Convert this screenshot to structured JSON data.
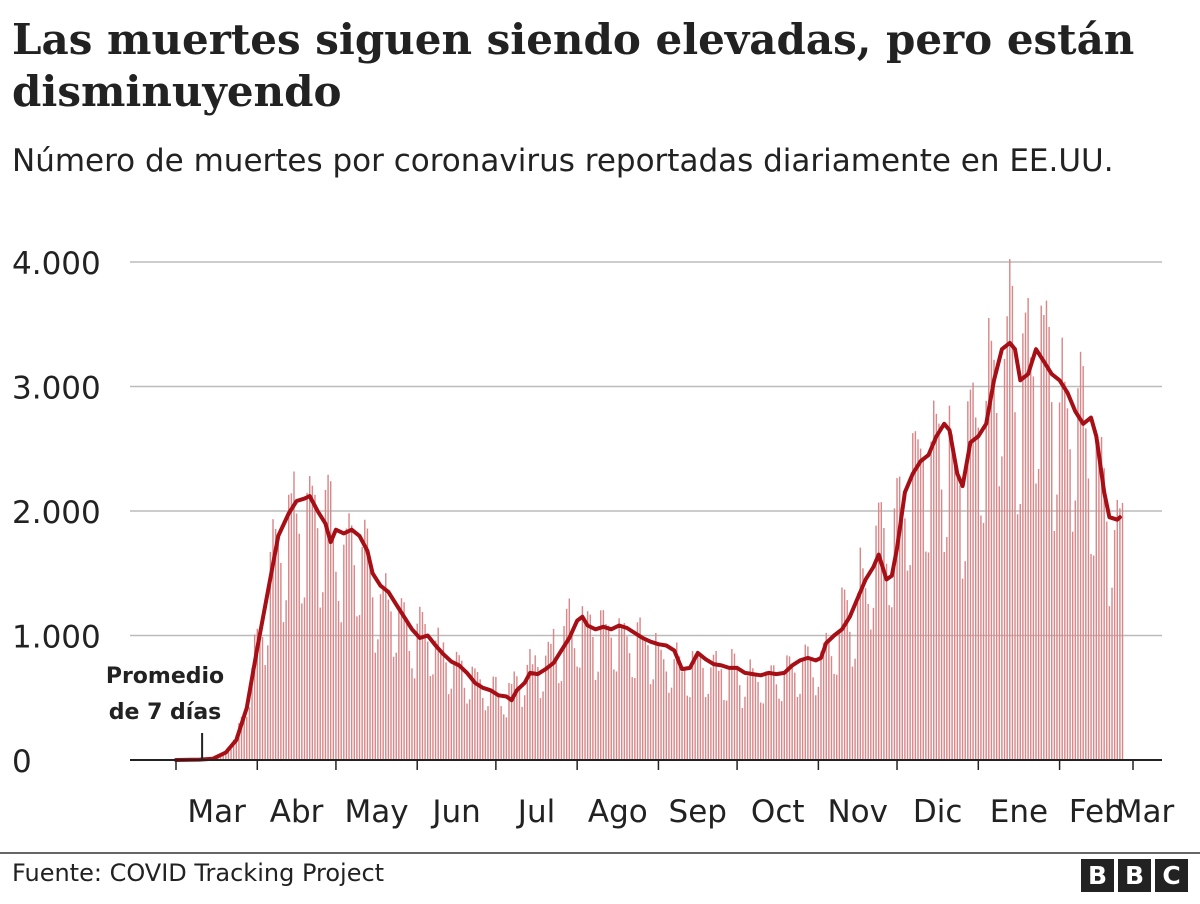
{
  "header": {
    "title": "Las muertes siguen siendo elevadas, pero están disminuyendo",
    "subtitle": "Número de muertes por coronavirus reportadas diariamente en EE.UU."
  },
  "footer": {
    "source": "Fuente: COVID Tracking Project",
    "logo_letters": [
      "B",
      "B",
      "C"
    ]
  },
  "colors": {
    "bars": "#d9888a",
    "line": "#a50f15",
    "grid": "#bbbbbb",
    "axis": "#222222",
    "text": "#222222"
  },
  "chart_data": {
    "type": "bar",
    "title": "Las muertes siguen siendo elevadas, pero están disminuyendo",
    "subtitle": "Número de muertes por coronavirus reportadas diariamente en EE.UU.",
    "xlabel": "",
    "ylabel": "",
    "ylim": [
      0,
      4000
    ],
    "yticks": [
      0,
      1000,
      2000,
      3000,
      4000
    ],
    "ytick_labels": [
      "0",
      "1.000",
      "2.000",
      "3.000",
      "4.000"
    ],
    "x_start_date": "2020-03-01",
    "x_end_date": "2021-03-01",
    "xtick_labels": [
      "Mar",
      "Abr",
      "May",
      "Jun",
      "Jul",
      "Ago",
      "Sep",
      "Oct",
      "Nov",
      "Dic",
      "Ene",
      "Feb",
      "Mar"
    ],
    "xtick_dates": [
      "2020-03-01",
      "2020-04-01",
      "2020-05-01",
      "2020-06-01",
      "2020-07-01",
      "2020-08-01",
      "2020-09-01",
      "2020-10-01",
      "2020-11-01",
      "2020-12-01",
      "2021-01-01",
      "2021-02-01",
      "2021-03-01"
    ],
    "grid": true,
    "annotation": {
      "text_lines": [
        "Promedio",
        "de 7 días"
      ],
      "date": "2020-03-06"
    },
    "daily_deaths_anchors": {
      "description_dates_and_values": [
        [
          "2020-03-01",
          0
        ],
        [
          "2020-03-10",
          5
        ],
        [
          "2020-03-18",
          40
        ],
        [
          "2020-03-24",
          180
        ],
        [
          "2020-03-28",
          500
        ],
        [
          "2020-04-01",
          950
        ],
        [
          "2020-04-05",
          1400
        ],
        [
          "2020-04-09",
          1850
        ],
        [
          "2020-04-13",
          2000
        ],
        [
          "2020-04-18",
          2150
        ],
        [
          "2020-04-21",
          2250
        ],
        [
          "2020-04-25",
          2100
        ],
        [
          "2020-04-30",
          1950
        ],
        [
          "2020-05-05",
          1850
        ],
        [
          "2020-05-10",
          1750
        ],
        [
          "2020-05-15",
          1500
        ],
        [
          "2020-05-20",
          1350
        ],
        [
          "2020-05-25",
          1200
        ],
        [
          "2020-05-30",
          1100
        ],
        [
          "2020-06-04",
          1050
        ],
        [
          "2020-06-10",
          900
        ],
        [
          "2020-06-15",
          800
        ],
        [
          "2020-06-20",
          700
        ],
        [
          "2020-06-25",
          650
        ],
        [
          "2020-06-30",
          580
        ],
        [
          "2020-07-05",
          550
        ],
        [
          "2020-07-10",
          700
        ],
        [
          "2020-07-15",
          780
        ],
        [
          "2020-07-20",
          880
        ],
        [
          "2020-07-25",
          1050
        ],
        [
          "2020-07-30",
          1150
        ],
        [
          "2020-08-05",
          1130
        ],
        [
          "2020-08-10",
          1100
        ],
        [
          "2020-08-15",
          1100
        ],
        [
          "2020-08-20",
          1080
        ],
        [
          "2020-08-25",
          1020
        ],
        [
          "2020-08-31",
          950
        ],
        [
          "2020-09-05",
          850
        ],
        [
          "2020-09-10",
          780
        ],
        [
          "2020-09-15",
          830
        ],
        [
          "2020-09-20",
          800
        ],
        [
          "2020-09-25",
          780
        ],
        [
          "2020-09-30",
          760
        ],
        [
          "2020-10-05",
          720
        ],
        [
          "2020-10-10",
          700
        ],
        [
          "2020-10-15",
          720
        ],
        [
          "2020-10-20",
          750
        ],
        [
          "2020-10-25",
          800
        ],
        [
          "2020-10-31",
          850
        ],
        [
          "2020-11-05",
          1000
        ],
        [
          "2020-11-10",
          1150
        ],
        [
          "2020-11-15",
          1300
        ],
        [
          "2020-11-20",
          1600
        ],
        [
          "2020-11-25",
          1900
        ],
        [
          "2020-11-30",
          2000
        ],
        [
          "2020-12-05",
          2300
        ],
        [
          "2020-12-10",
          2600
        ],
        [
          "2020-12-15",
          2700
        ],
        [
          "2020-12-20",
          2800
        ],
        [
          "2020-12-25",
          2400
        ],
        [
          "2020-12-31",
          2900
        ],
        [
          "2021-01-05",
          3200
        ],
        [
          "2021-01-10",
          3450
        ],
        [
          "2021-01-14",
          3550
        ],
        [
          "2021-01-18",
          3300
        ],
        [
          "2021-01-22",
          3450
        ],
        [
          "2021-01-27",
          3300
        ],
        [
          "2021-02-01",
          3150
        ],
        [
          "2021-02-05",
          3050
        ],
        [
          "2021-02-10",
          2950
        ],
        [
          "2021-02-15",
          2550
        ],
        [
          "2021-02-18",
          2300
        ],
        [
          "2021-02-22",
          1950
        ],
        [
          "2021-02-25",
          1950
        ]
      ]
    },
    "series": [
      {
        "name": "Promedio de 7 días",
        "points": [
          [
            "2020-03-01",
            0
          ],
          [
            "2020-03-10",
            3
          ],
          [
            "2020-03-15",
            10
          ],
          [
            "2020-03-20",
            60
          ],
          [
            "2020-03-24",
            160
          ],
          [
            "2020-03-28",
            420
          ],
          [
            "2020-04-01",
            900
          ],
          [
            "2020-04-05",
            1350
          ],
          [
            "2020-04-09",
            1800
          ],
          [
            "2020-04-13",
            1980
          ],
          [
            "2020-04-16",
            2080
          ],
          [
            "2020-04-19",
            2100
          ],
          [
            "2020-04-21",
            2120
          ],
          [
            "2020-04-24",
            2000
          ],
          [
            "2020-04-27",
            1900
          ],
          [
            "2020-04-29",
            1750
          ],
          [
            "2020-05-01",
            1850
          ],
          [
            "2020-05-04",
            1820
          ],
          [
            "2020-05-07",
            1850
          ],
          [
            "2020-05-10",
            1800
          ],
          [
            "2020-05-13",
            1680
          ],
          [
            "2020-05-15",
            1500
          ],
          [
            "2020-05-18",
            1400
          ],
          [
            "2020-05-21",
            1350
          ],
          [
            "2020-05-24",
            1250
          ],
          [
            "2020-05-27",
            1150
          ],
          [
            "2020-05-30",
            1050
          ],
          [
            "2020-06-02",
            980
          ],
          [
            "2020-06-05",
            1000
          ],
          [
            "2020-06-08",
            920
          ],
          [
            "2020-06-11",
            850
          ],
          [
            "2020-06-14",
            790
          ],
          [
            "2020-06-17",
            760
          ],
          [
            "2020-06-20",
            700
          ],
          [
            "2020-06-23",
            620
          ],
          [
            "2020-06-26",
            580
          ],
          [
            "2020-06-29",
            560
          ],
          [
            "2020-07-02",
            520
          ],
          [
            "2020-07-05",
            510
          ],
          [
            "2020-07-07",
            480
          ],
          [
            "2020-07-09",
            560
          ],
          [
            "2020-07-12",
            620
          ],
          [
            "2020-07-14",
            700
          ],
          [
            "2020-07-17",
            690
          ],
          [
            "2020-07-20",
            730
          ],
          [
            "2020-07-23",
            780
          ],
          [
            "2020-07-26",
            880
          ],
          [
            "2020-07-29",
            980
          ],
          [
            "2020-08-01",
            1120
          ],
          [
            "2020-08-03",
            1150
          ],
          [
            "2020-08-05",
            1080
          ],
          [
            "2020-08-08",
            1050
          ],
          [
            "2020-08-11",
            1070
          ],
          [
            "2020-08-14",
            1050
          ],
          [
            "2020-08-17",
            1080
          ],
          [
            "2020-08-20",
            1060
          ],
          [
            "2020-08-23",
            1020
          ],
          [
            "2020-08-26",
            980
          ],
          [
            "2020-08-29",
            950
          ],
          [
            "2020-09-01",
            930
          ],
          [
            "2020-09-04",
            920
          ],
          [
            "2020-09-07",
            880
          ],
          [
            "2020-09-10",
            730
          ],
          [
            "2020-09-13",
            740
          ],
          [
            "2020-09-16",
            860
          ],
          [
            "2020-09-19",
            810
          ],
          [
            "2020-09-22",
            770
          ],
          [
            "2020-09-25",
            760
          ],
          [
            "2020-09-28",
            740
          ],
          [
            "2020-10-01",
            740
          ],
          [
            "2020-10-04",
            700
          ],
          [
            "2020-10-07",
            690
          ],
          [
            "2020-10-10",
            680
          ],
          [
            "2020-10-13",
            700
          ],
          [
            "2020-10-16",
            690
          ],
          [
            "2020-10-19",
            700
          ],
          [
            "2020-10-22",
            760
          ],
          [
            "2020-10-25",
            800
          ],
          [
            "2020-10-28",
            820
          ],
          [
            "2020-10-31",
            800
          ],
          [
            "2020-11-02",
            820
          ],
          [
            "2020-11-04",
            940
          ],
          [
            "2020-11-07",
            1000
          ],
          [
            "2020-11-10",
            1050
          ],
          [
            "2020-11-13",
            1150
          ],
          [
            "2020-11-16",
            1300
          ],
          [
            "2020-11-19",
            1450
          ],
          [
            "2020-11-22",
            1550
          ],
          [
            "2020-11-24",
            1650
          ],
          [
            "2020-11-27",
            1450
          ],
          [
            "2020-11-29",
            1480
          ],
          [
            "2020-12-01",
            1700
          ],
          [
            "2020-12-04",
            2150
          ],
          [
            "2020-12-07",
            2300
          ],
          [
            "2020-12-10",
            2400
          ],
          [
            "2020-12-13",
            2450
          ],
          [
            "2020-12-16",
            2600
          ],
          [
            "2020-12-19",
            2700
          ],
          [
            "2020-12-21",
            2650
          ],
          [
            "2020-12-24",
            2300
          ],
          [
            "2020-12-26",
            2200
          ],
          [
            "2020-12-29",
            2550
          ],
          [
            "2021-01-01",
            2600
          ],
          [
            "2021-01-04",
            2700
          ],
          [
            "2021-01-07",
            3050
          ],
          [
            "2021-01-10",
            3300
          ],
          [
            "2021-01-13",
            3350
          ],
          [
            "2021-01-15",
            3300
          ],
          [
            "2021-01-17",
            3050
          ],
          [
            "2021-01-20",
            3100
          ],
          [
            "2021-01-23",
            3300
          ],
          [
            "2021-01-26",
            3200
          ],
          [
            "2021-01-29",
            3100
          ],
          [
            "2021-02-01",
            3050
          ],
          [
            "2021-02-04",
            2950
          ],
          [
            "2021-02-07",
            2800
          ],
          [
            "2021-02-10",
            2700
          ],
          [
            "2021-02-13",
            2750
          ],
          [
            "2021-02-15",
            2600
          ],
          [
            "2021-02-18",
            2150
          ],
          [
            "2021-02-20",
            1950
          ],
          [
            "2021-02-23",
            1930
          ],
          [
            "2021-02-24",
            1950
          ]
        ]
      }
    ]
  }
}
